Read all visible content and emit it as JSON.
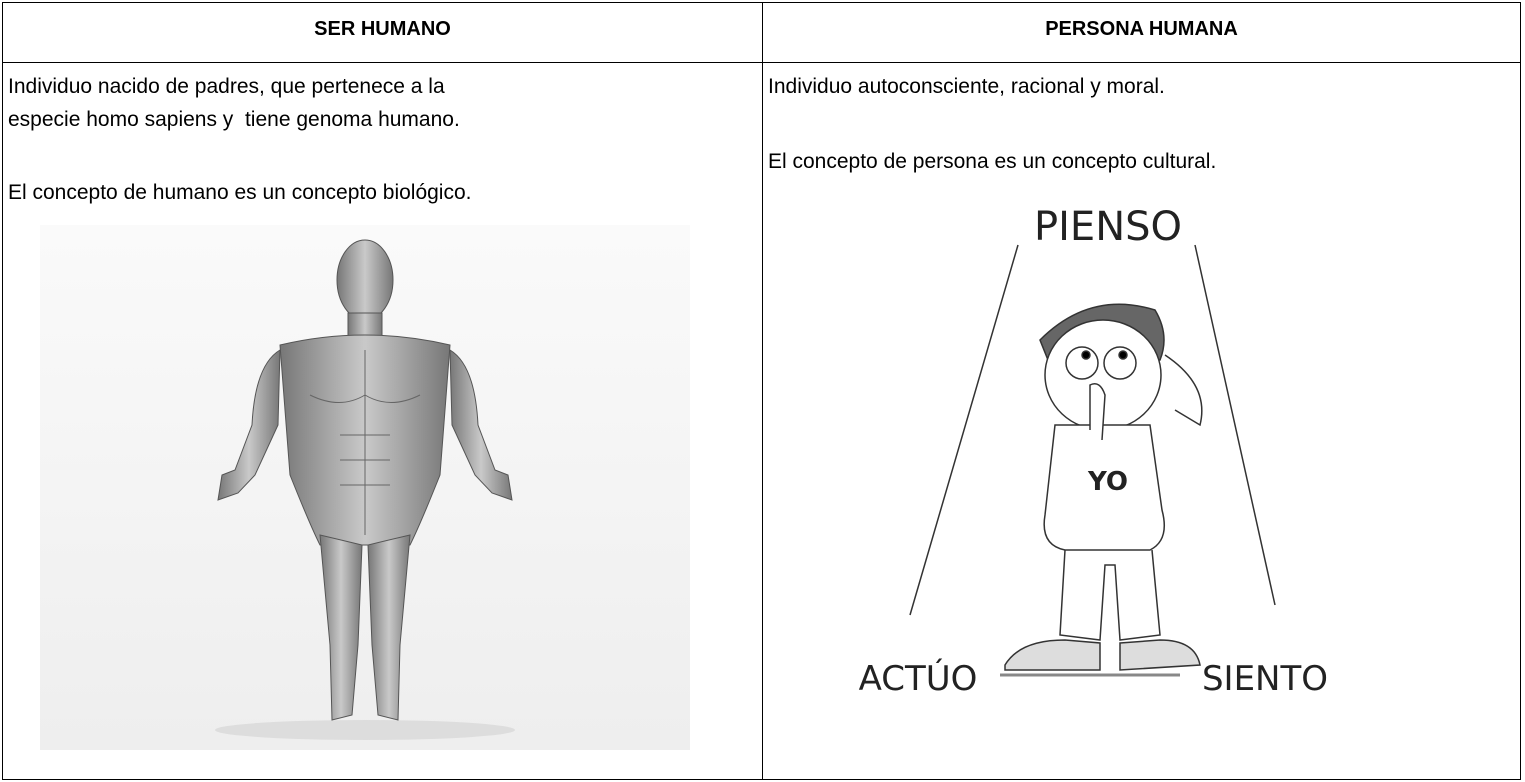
{
  "table": {
    "headers": [
      "SER HUMANO",
      "PERSONA HUMANA"
    ],
    "cells": [
      {
        "paragraphs": [
          [
            "Individuo nacido de padres, que pertenece a la",
            "especie homo sapiens y  tiene genoma humano."
          ],
          [
            "El concepto de humano es un concepto biológico."
          ]
        ]
      },
      {
        "paragraphs": [
          [
            "Individuo autoconsciente, racional y moral."
          ],
          [
            "El concepto de persona es un concepto cultural."
          ]
        ],
        "image_labels": [
          "PIENSO",
          "YO",
          "ACTÚO",
          "SIENTO"
        ]
      }
    ]
  }
}
